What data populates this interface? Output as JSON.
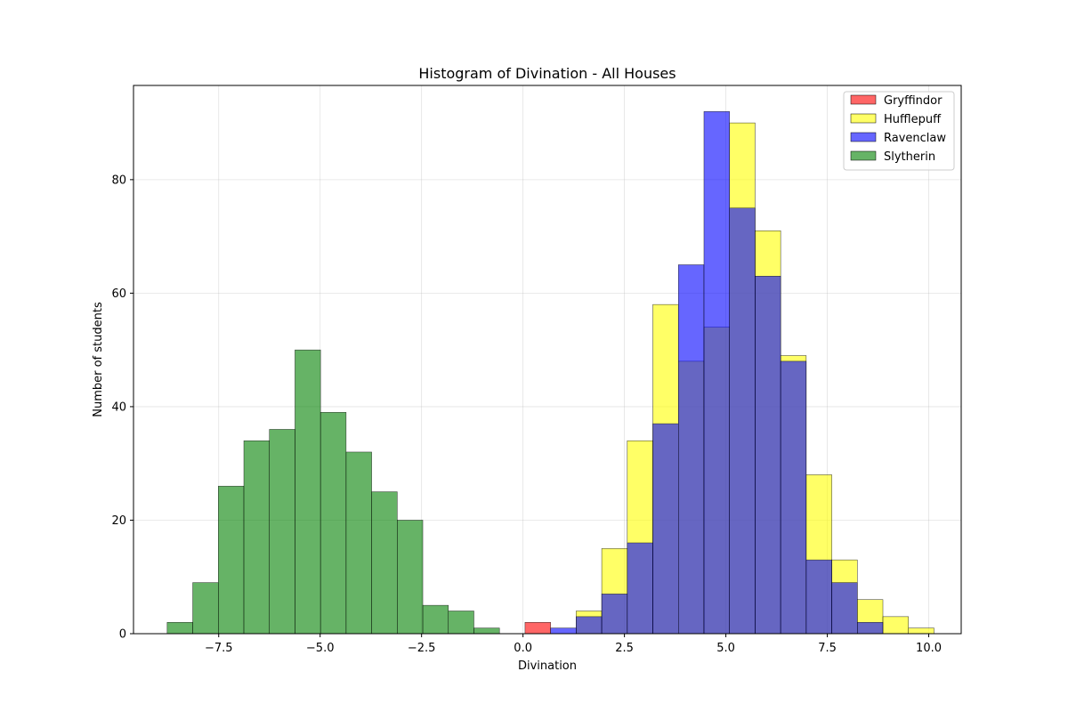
{
  "chart_data": {
    "type": "bar",
    "title": "Histogram of Divination - All Houses",
    "xlabel": "Divination",
    "ylabel": "Number of students",
    "xlim": [
      -9.6,
      10.8
    ],
    "ylim": [
      0,
      96.6
    ],
    "xticks": [
      -7.5,
      -5.0,
      -2.5,
      0.0,
      2.5,
      5.0,
      7.5,
      10.0
    ],
    "xtick_labels": [
      "−7.5",
      "−5.0",
      "−2.5",
      "0.0",
      "2.5",
      "5.0",
      "7.5",
      "10.0"
    ],
    "yticks": [
      0,
      20,
      40,
      60,
      80
    ],
    "ytick_labels": [
      "0",
      "20",
      "40",
      "60",
      "80"
    ],
    "grid": true,
    "legend_position": "top-right",
    "bin_edges": [
      -8.77,
      -8.14,
      -7.51,
      -6.88,
      -6.25,
      -5.62,
      -4.99,
      -4.36,
      -3.73,
      -3.1,
      -2.47,
      -1.84,
      -1.21,
      -0.58,
      0.05,
      0.68,
      1.31,
      1.94,
      2.57,
      3.2,
      3.83,
      4.46,
      5.09,
      5.72,
      6.35,
      6.98,
      7.61,
      8.24,
      8.87,
      9.5,
      10.13
    ],
    "series": [
      {
        "name": "Gryffindor",
        "color": "#ff0000",
        "opacity": 0.6,
        "values": [
          0,
          0,
          0,
          0,
          0,
          0,
          0,
          0,
          0,
          0,
          0,
          0,
          0,
          0,
          2,
          0,
          0,
          0,
          0,
          0,
          0,
          0,
          0,
          0,
          0,
          0,
          0,
          0,
          0,
          0
        ]
      },
      {
        "name": "Hufflepuff",
        "color": "#ffff00",
        "opacity": 0.6,
        "values": [
          0,
          0,
          0,
          0,
          0,
          0,
          0,
          0,
          0,
          0,
          0,
          0,
          0,
          0,
          0,
          0,
          4,
          15,
          34,
          58,
          48,
          54,
          90,
          71,
          49,
          28,
          13,
          6,
          3,
          1
        ]
      },
      {
        "name": "Ravenclaw",
        "color": "#0000ff",
        "opacity": 0.6,
        "values": [
          0,
          0,
          0,
          0,
          0,
          0,
          0,
          0,
          0,
          0,
          0,
          0,
          0,
          0,
          0,
          1,
          3,
          7,
          16,
          37,
          65,
          92,
          75,
          63,
          48,
          13,
          9,
          2,
          0,
          0
        ]
      },
      {
        "name": "Slytherin",
        "color": "#008000",
        "opacity": 0.6,
        "values": [
          2,
          9,
          26,
          34,
          36,
          50,
          39,
          32,
          25,
          20,
          5,
          4,
          1,
          0,
          0,
          0,
          0,
          0,
          0,
          0,
          0,
          0,
          0,
          0,
          0,
          0,
          0,
          0,
          0,
          0
        ]
      }
    ]
  }
}
